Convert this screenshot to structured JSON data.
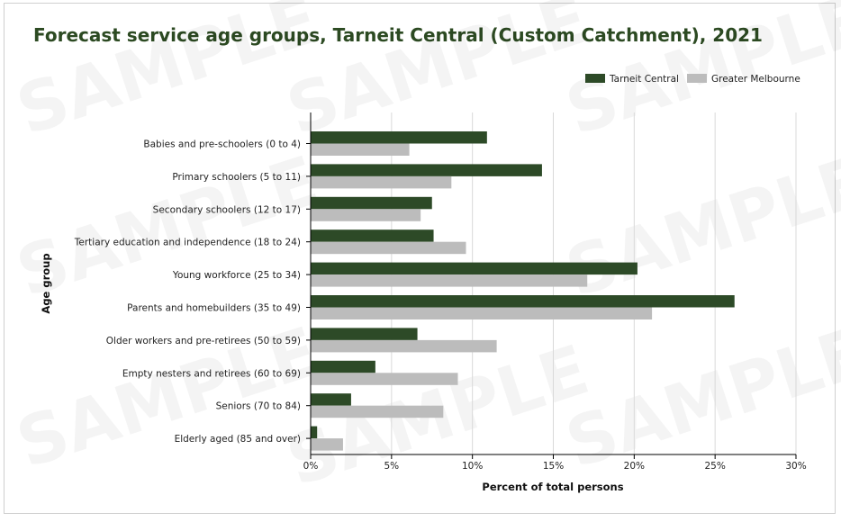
{
  "chart_data": {
    "type": "bar",
    "orientation": "horizontal",
    "title": "Forecast service age groups, Tarneit Central (Custom Catchment), 2021",
    "xlabel": "Percent of total persons",
    "ylabel": "Age group",
    "xlim": [
      0,
      30
    ],
    "xticks": [
      "0%",
      "5%",
      "10%",
      "15%",
      "20%",
      "25%",
      "30%"
    ],
    "grid": "vertical",
    "legend_position": "top-right",
    "categories": [
      "Babies and pre-schoolers (0 to 4)",
      "Primary schoolers (5 to 11)",
      "Secondary schoolers (12 to 17)",
      "Tertiary education and independence (18 to 24)",
      "Young workforce (25 to 34)",
      "Parents and homebuilders (35 to 49)",
      "Older workers and pre-retirees (50 to 59)",
      "Empty nesters and retirees (60 to 69)",
      "Seniors (70 to 84)",
      "Elderly aged (85 and over)"
    ],
    "series": [
      {
        "name": "Tarneit Central",
        "color": "#2d4a27",
        "values": [
          10.9,
          14.3,
          7.5,
          7.6,
          20.2,
          26.2,
          6.6,
          4.0,
          2.5,
          0.4
        ]
      },
      {
        "name": "Greater Melbourne",
        "color": "#bcbcbc",
        "values": [
          6.1,
          8.7,
          6.8,
          9.6,
          17.1,
          21.1,
          11.5,
          9.1,
          8.2,
          2.0
        ]
      }
    ]
  },
  "watermark": "SAMPLE"
}
